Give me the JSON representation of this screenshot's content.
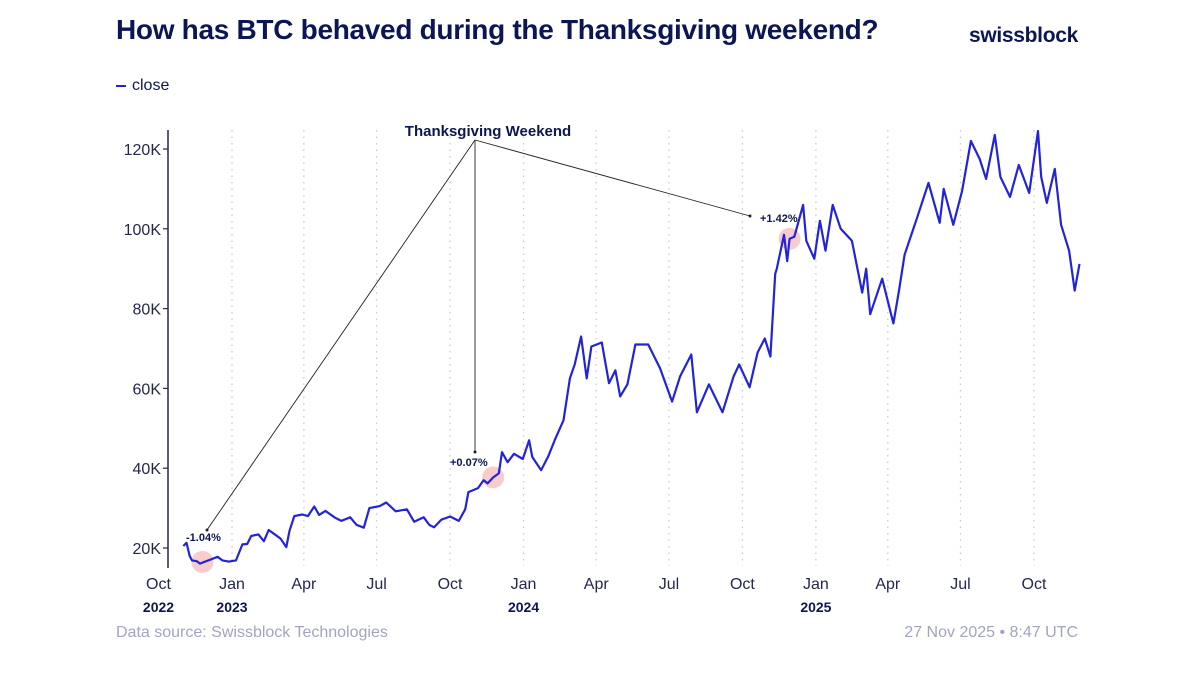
{
  "header": {
    "title": "How has BTC behaved during the Thanksgiving weekend?",
    "logo": "swissblock"
  },
  "footer": {
    "source": "Data source: Swissblock Technologies",
    "timestamp": "27 Nov 2025 • 8:47 UTC"
  },
  "chart_data": {
    "type": "line",
    "title": "How has BTC behaved during the Thanksgiving weekend?",
    "legend": {
      "position": "top-left",
      "entries": [
        "close"
      ]
    },
    "xlabel": "",
    "ylabel": "",
    "ylim": [
      16000,
      124000
    ],
    "xlim": [
      "2022-10-01",
      "2025-11-30"
    ],
    "grid": {
      "x": "dotted vertical at quarter starts",
      "y": false
    },
    "line_color": "#2323d8",
    "highlight_color": "#f4b6b6",
    "y_ticks": [
      {
        "value": 20000,
        "label": "20K"
      },
      {
        "value": 40000,
        "label": "40K"
      },
      {
        "value": 60000,
        "label": "60K"
      },
      {
        "value": 80000,
        "label": "80K"
      },
      {
        "value": 100000,
        "label": "100K"
      },
      {
        "value": 120000,
        "label": "120K"
      }
    ],
    "x_ticks": [
      {
        "date": "2022-10-01",
        "label": "Oct",
        "year": "2022"
      },
      {
        "date": "2023-01-01",
        "label": "Jan",
        "year": "2023"
      },
      {
        "date": "2023-04-01",
        "label": "Apr",
        "year": ""
      },
      {
        "date": "2023-07-01",
        "label": "Jul",
        "year": ""
      },
      {
        "date": "2023-10-01",
        "label": "Oct",
        "year": ""
      },
      {
        "date": "2024-01-01",
        "label": "Jan",
        "year": "2024"
      },
      {
        "date": "2024-04-01",
        "label": "Apr",
        "year": ""
      },
      {
        "date": "2024-07-01",
        "label": "Jul",
        "year": ""
      },
      {
        "date": "2024-10-01",
        "label": "Oct",
        "year": ""
      },
      {
        "date": "2025-01-01",
        "label": "Jan",
        "year": "2025"
      },
      {
        "date": "2025-04-01",
        "label": "Apr",
        "year": ""
      },
      {
        "date": "2025-07-01",
        "label": "Jul",
        "year": ""
      },
      {
        "date": "2025-10-01",
        "label": "Oct",
        "year": ""
      }
    ],
    "annotation_title": "Thanksgiving Weekend",
    "annotations": [
      {
        "date": "2022-11-25",
        "value": 16500,
        "label": "-1.04%"
      },
      {
        "date": "2023-11-24",
        "value": 37700,
        "label": "+0.07%"
      },
      {
        "date": "2024-11-29",
        "value": 97500,
        "label": "+1.42%"
      }
    ],
    "series": [
      {
        "name": "close",
        "points": [
          [
            "2022-11-01",
            20500
          ],
          [
            "2022-11-05",
            21300
          ],
          [
            "2022-11-09",
            18000
          ],
          [
            "2022-11-12",
            16900
          ],
          [
            "2022-11-18",
            16700
          ],
          [
            "2022-11-22",
            16100
          ],
          [
            "2022-11-27",
            16500
          ],
          [
            "2022-12-05",
            17100
          ],
          [
            "2022-12-14",
            17800
          ],
          [
            "2022-12-20",
            16900
          ],
          [
            "2022-12-28",
            16600
          ],
          [
            "2023-01-06",
            16900
          ],
          [
            "2023-01-14",
            20900
          ],
          [
            "2023-01-20",
            21000
          ],
          [
            "2023-01-25",
            23000
          ],
          [
            "2023-02-03",
            23400
          ],
          [
            "2023-02-10",
            21700
          ],
          [
            "2023-02-16",
            24500
          ],
          [
            "2023-02-25",
            23200
          ],
          [
            "2023-03-03",
            22300
          ],
          [
            "2023-03-10",
            20200
          ],
          [
            "2023-03-14",
            24300
          ],
          [
            "2023-03-20",
            28000
          ],
          [
            "2023-03-30",
            28400
          ],
          [
            "2023-04-06",
            28000
          ],
          [
            "2023-04-14",
            30400
          ],
          [
            "2023-04-20",
            28300
          ],
          [
            "2023-04-28",
            29300
          ],
          [
            "2023-05-10",
            27600
          ],
          [
            "2023-05-18",
            26800
          ],
          [
            "2023-05-29",
            27700
          ],
          [
            "2023-06-06",
            25800
          ],
          [
            "2023-06-15",
            25100
          ],
          [
            "2023-06-22",
            30000
          ],
          [
            "2023-07-05",
            30500
          ],
          [
            "2023-07-13",
            31400
          ],
          [
            "2023-07-25",
            29200
          ],
          [
            "2023-08-08",
            29700
          ],
          [
            "2023-08-17",
            26600
          ],
          [
            "2023-08-29",
            27700
          ],
          [
            "2023-09-05",
            25800
          ],
          [
            "2023-09-11",
            25200
          ],
          [
            "2023-09-20",
            27100
          ],
          [
            "2023-10-01",
            27900
          ],
          [
            "2023-10-12",
            26800
          ],
          [
            "2023-10-20",
            29700
          ],
          [
            "2023-10-24",
            34000
          ],
          [
            "2023-11-05",
            35000
          ],
          [
            "2023-11-12",
            37000
          ],
          [
            "2023-11-17",
            36200
          ],
          [
            "2023-11-24",
            37700
          ],
          [
            "2023-12-01",
            38700
          ],
          [
            "2023-12-05",
            44000
          ],
          [
            "2023-12-12",
            41500
          ],
          [
            "2023-12-20",
            43600
          ],
          [
            "2023-12-31",
            42300
          ],
          [
            "2024-01-08",
            47000
          ],
          [
            "2024-01-12",
            42800
          ],
          [
            "2024-01-23",
            39500
          ],
          [
            "2024-02-01",
            43000
          ],
          [
            "2024-02-10",
            47500
          ],
          [
            "2024-02-20",
            52000
          ],
          [
            "2024-02-28",
            62500
          ],
          [
            "2024-03-05",
            66000
          ],
          [
            "2024-03-13",
            73000
          ],
          [
            "2024-03-20",
            62500
          ],
          [
            "2024-03-26",
            70500
          ],
          [
            "2024-04-08",
            71500
          ],
          [
            "2024-04-17",
            61300
          ],
          [
            "2024-04-25",
            64500
          ],
          [
            "2024-05-01",
            58000
          ],
          [
            "2024-05-10",
            61000
          ],
          [
            "2024-05-20",
            71000
          ],
          [
            "2024-06-05",
            71000
          ],
          [
            "2024-06-20",
            65000
          ],
          [
            "2024-07-05",
            56700
          ],
          [
            "2024-07-15",
            63000
          ],
          [
            "2024-07-29",
            68500
          ],
          [
            "2024-08-05",
            54000
          ],
          [
            "2024-08-20",
            61000
          ],
          [
            "2024-09-06",
            54000
          ],
          [
            "2024-09-20",
            63000
          ],
          [
            "2024-09-27",
            66000
          ],
          [
            "2024-10-10",
            60300
          ],
          [
            "2024-10-20",
            69000
          ],
          [
            "2024-10-29",
            72500
          ],
          [
            "2024-11-05",
            68000
          ],
          [
            "2024-11-11",
            88700
          ],
          [
            "2024-11-13",
            90000
          ],
          [
            "2024-11-22",
            98500
          ],
          [
            "2024-11-26",
            91900
          ],
          [
            "2024-11-29",
            97500
          ],
          [
            "2024-12-05",
            98000
          ],
          [
            "2024-12-16",
            106000
          ],
          [
            "2024-12-20",
            97000
          ],
          [
            "2024-12-30",
            92500
          ],
          [
            "2025-01-06",
            102000
          ],
          [
            "2025-01-13",
            94500
          ],
          [
            "2025-01-22",
            106000
          ],
          [
            "2025-02-01",
            100000
          ],
          [
            "2025-02-15",
            97000
          ],
          [
            "2025-02-28",
            84000
          ],
          [
            "2025-03-05",
            90000
          ],
          [
            "2025-03-10",
            78600
          ],
          [
            "2025-03-25",
            87500
          ],
          [
            "2025-04-08",
            76300
          ],
          [
            "2025-04-15",
            84500
          ],
          [
            "2025-04-22",
            93500
          ],
          [
            "2025-05-08",
            103000
          ],
          [
            "2025-05-22",
            111500
          ],
          [
            "2025-06-05",
            101500
          ],
          [
            "2025-06-10",
            110000
          ],
          [
            "2025-06-22",
            101000
          ],
          [
            "2025-07-03",
            109500
          ],
          [
            "2025-07-14",
            122000
          ],
          [
            "2025-07-25",
            117500
          ],
          [
            "2025-08-02",
            112500
          ],
          [
            "2025-08-13",
            123500
          ],
          [
            "2025-08-20",
            113000
          ],
          [
            "2025-09-01",
            108000
          ],
          [
            "2025-09-12",
            116000
          ],
          [
            "2025-09-25",
            109000
          ],
          [
            "2025-10-06",
            124500
          ],
          [
            "2025-10-10",
            113000
          ],
          [
            "2025-10-17",
            106500
          ],
          [
            "2025-10-27",
            115000
          ],
          [
            "2025-11-04",
            101000
          ],
          [
            "2025-11-14",
            94500
          ],
          [
            "2025-11-21",
            84500
          ],
          [
            "2025-11-27",
            91200
          ]
        ]
      }
    ]
  }
}
